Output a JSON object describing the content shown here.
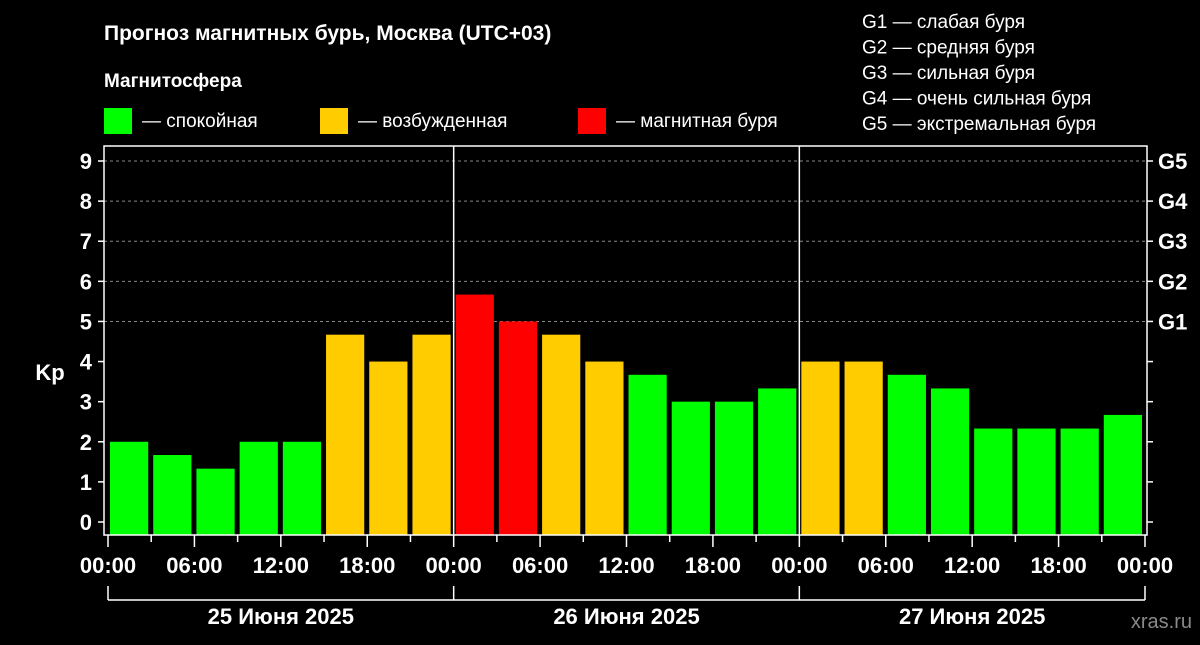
{
  "chart_data": {
    "type": "bar",
    "title": "Прогноз магнитных бурь, Москва (UTC+03)",
    "legend_title": "Магнитосфера",
    "legend": [
      {
        "label": "— спокойная",
        "color": "#00ff00"
      },
      {
        "label": "— возбужденная",
        "color": "#ffcc00"
      },
      {
        "label": "— магнитная буря",
        "color": "#ff0000"
      }
    ],
    "g_scale_legend": [
      "G1 — слабая буря",
      "G2 — средняя буря",
      "G3 — сильная буря",
      "G4 — очень сильная буря",
      "G5 — экстремальная буря"
    ],
    "ylabel": "Kp",
    "ylim": [
      0,
      9
    ],
    "yticks": [
      "0",
      "1",
      "2",
      "3",
      "4",
      "5",
      "6",
      "7",
      "8",
      "9"
    ],
    "right_ticks": [
      {
        "value": 5,
        "label": "G1"
      },
      {
        "value": 6,
        "label": "G2"
      },
      {
        "value": 7,
        "label": "G3"
      },
      {
        "value": 8,
        "label": "G4"
      },
      {
        "value": 9,
        "label": "G5"
      }
    ],
    "xtick_labels": [
      "00:00",
      "06:00",
      "12:00",
      "18:00",
      "00:00",
      "06:00",
      "12:00",
      "18:00",
      "00:00",
      "06:00",
      "12:00",
      "18:00",
      "00:00"
    ],
    "days": [
      "25 Июня 2025",
      "26 Июня 2025",
      "27 Июня 2025"
    ],
    "grid": "dashed horizontal",
    "values": [
      2,
      1.67,
      1.33,
      2,
      2,
      4.67,
      4,
      4.67,
      5.67,
      5,
      4.67,
      4,
      3.67,
      3,
      3,
      3.33,
      4,
      4,
      3.67,
      3.33,
      2.33,
      2.33,
      2.33,
      2.67
    ],
    "levels": [
      "calm",
      "calm",
      "calm",
      "calm",
      "calm",
      "active",
      "active",
      "active",
      "storm",
      "storm",
      "active",
      "active",
      "calm",
      "calm",
      "calm",
      "calm",
      "active",
      "active",
      "calm",
      "calm",
      "calm",
      "calm",
      "calm",
      "calm"
    ],
    "level_colors": {
      "calm": "#00ff00",
      "active": "#ffcc00",
      "storm": "#ff0000"
    }
  },
  "watermark": "xras.ru"
}
